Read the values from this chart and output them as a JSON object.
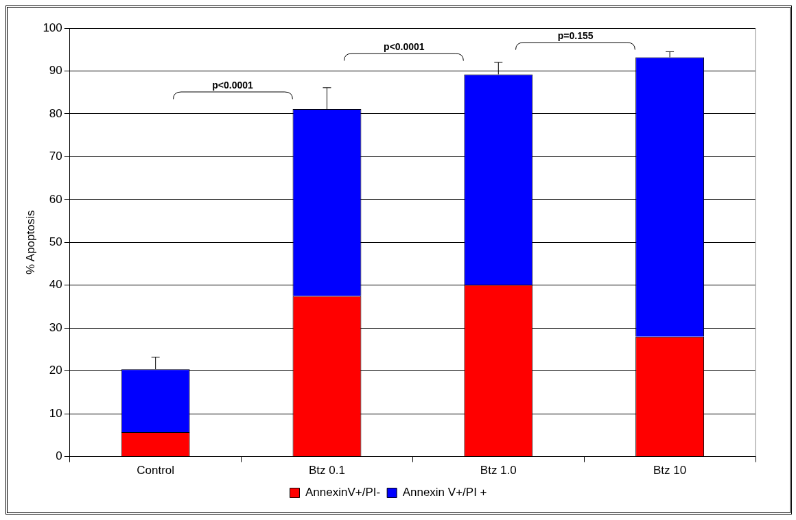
{
  "chart_data": {
    "type": "bar",
    "stacked": true,
    "ylabel": "% Apoptosis",
    "categories": [
      "Control",
      "Btz 0.1",
      "Btz 1.0",
      "Btz 10"
    ],
    "series": [
      {
        "name": "AnnexinV+/PI-",
        "color": "#ff0000",
        "values": [
          5.7,
          37.5,
          40.1,
          28.0
        ]
      },
      {
        "name": "Annexin V+/PI +",
        "color": "#0000ff",
        "values": [
          14.7,
          43.6,
          49.1,
          65.2
        ],
        "errors": [
          [
            20.4,
            23.2
          ],
          [
            81.1,
            86.1
          ],
          [
            89.2,
            92.0
          ],
          [
            93.2,
            94.5
          ]
        ]
      }
    ],
    "ylim": [
      0,
      100
    ],
    "yticks": [
      0,
      10,
      20,
      30,
      40,
      50,
      60,
      70,
      80,
      90,
      100
    ],
    "grid": "y",
    "legend": "bottom",
    "annotations": [
      "p<0.0001",
      "p<0.0001",
      "p=0.155"
    ]
  }
}
